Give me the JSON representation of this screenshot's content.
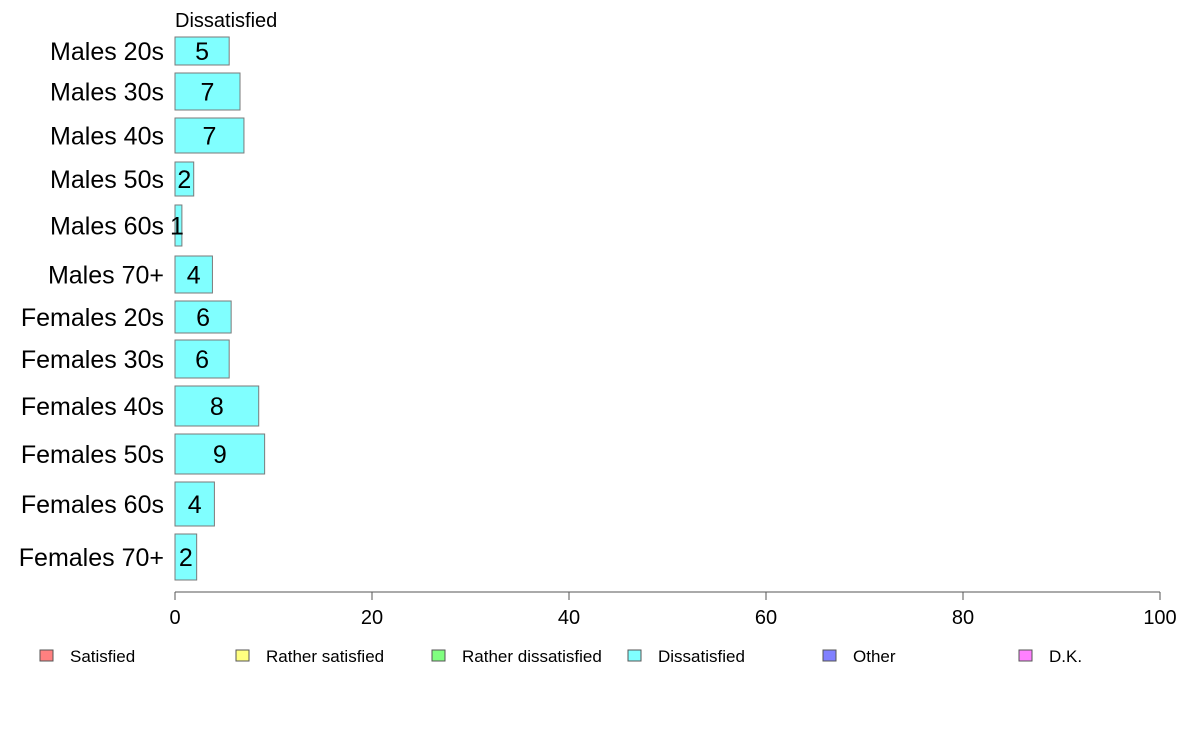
{
  "chart_data": {
    "type": "bar",
    "orientation": "horizontal",
    "stacked": true,
    "series_title": "Dissatisfied",
    "categories": [
      "Males 20s",
      "Males 30s",
      "Males 40s",
      "Males 50s",
      "Males 60s",
      "Males 70+",
      "Females 20s",
      "Females 30s",
      "Females 40s",
      "Females 50s",
      "Females 60s",
      "Females 70+"
    ],
    "series": [
      {
        "name": "Dissatisfied",
        "values": [
          5.5,
          6.6,
          7.0,
          1.9,
          0.7,
          3.8,
          5.7,
          5.5,
          8.5,
          9.1,
          4.0,
          2.2
        ],
        "labels": [
          "5",
          "7",
          "7",
          "2",
          "1",
          "4",
          "6",
          "6",
          "8",
          "9",
          "4",
          "2"
        ],
        "color": "#80FFFF"
      }
    ],
    "xlim": [
      0,
      100
    ],
    "xticks": [
      "0",
      "20",
      "40",
      "60",
      "80",
      "100"
    ],
    "grid": false,
    "legend": {
      "position": "bottom",
      "items": [
        {
          "label": "Satisfied",
          "color": "#FF8080"
        },
        {
          "label": "Rather satisfied",
          "color": "#FFFF80"
        },
        {
          "label": "Rather dissatisfied",
          "color": "#80FF80"
        },
        {
          "label": "Dissatisfied",
          "color": "#80FFFF"
        },
        {
          "label": "Other",
          "color": "#8080FF"
        },
        {
          "label": "D.K.",
          "color": "#FF80FF"
        }
      ]
    }
  }
}
